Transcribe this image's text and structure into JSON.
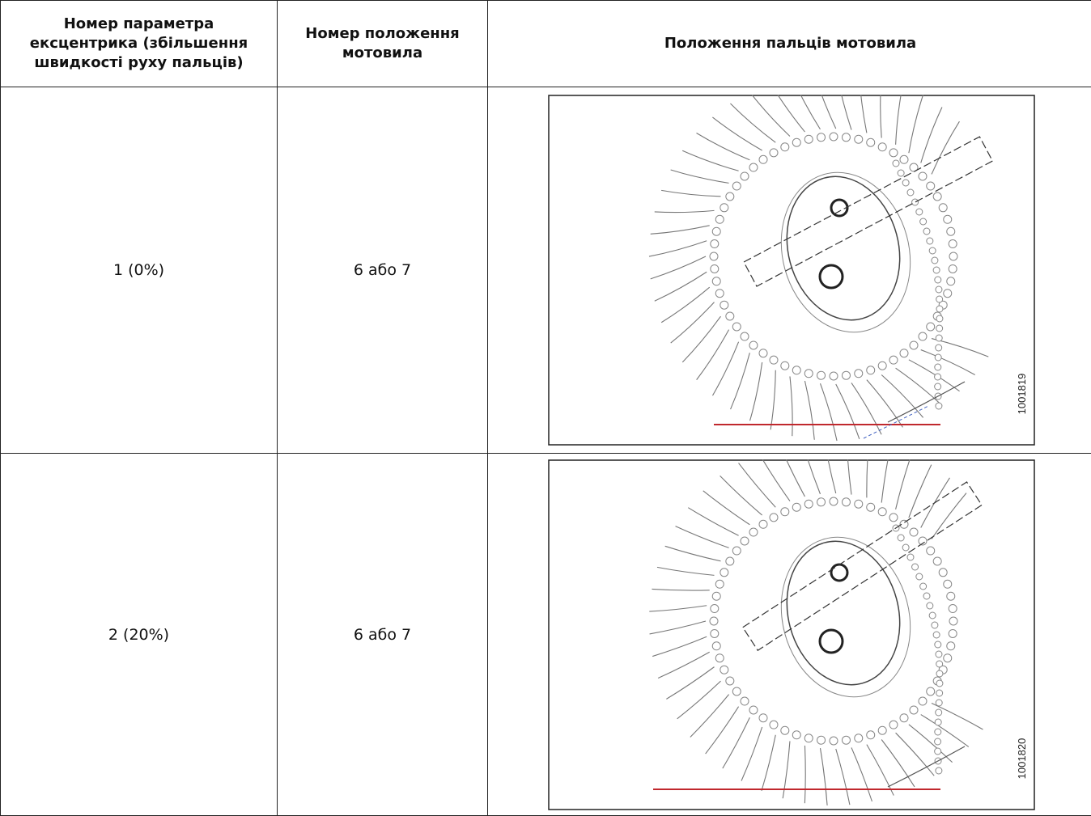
{
  "table": {
    "header": [
      "Номер параметра ексцентрика (збільшення швидкості руху пальців)",
      "Номер положення мотовила",
      "Положення пальців мотовила"
    ],
    "rows": [
      [
        "1 (0%)",
        "6 або 7",
        "1001819"
      ],
      [
        "2 (20%)",
        "6 або 7",
        "1001820"
      ]
    ]
  }
}
